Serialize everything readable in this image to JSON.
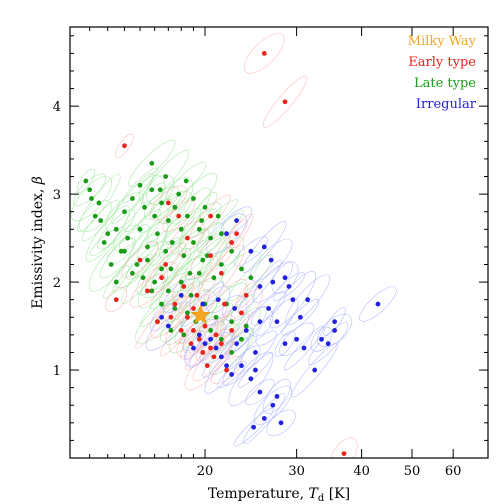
{
  "chart_data": {
    "type": "scatter",
    "title": "",
    "xlabel_prefix": "Temperature, ",
    "xlabel_symbol": "T",
    "xlabel_subscript": "d",
    "xlabel_suffix": " [K]",
    "ylabel_prefix": "Emissivity index, ",
    "ylabel_symbol": "β",
    "x_scale": "log",
    "xlim": [
      11,
      70
    ],
    "ylim": [
      0,
      4.9
    ],
    "xticks": [
      20,
      30,
      40,
      50,
      60
    ],
    "yticks": [
      1,
      2,
      3,
      4
    ],
    "grid": false,
    "legend_position": "top-right",
    "legend": [
      {
        "label": "Milky Way",
        "color": "#f5a623"
      },
      {
        "label": "Early type",
        "color": "#e8241c"
      },
      {
        "label": "Late type",
        "color": "#1a9b1a"
      },
      {
        "label": "Irregular",
        "color": "#2222dd"
      }
    ],
    "series": [
      {
        "name": "Late type",
        "color": "#1a9b1a",
        "points": [
          [
            11.8,
            3.15
          ],
          [
            12.0,
            3.05
          ],
          [
            12.1,
            2.95
          ],
          [
            12.5,
            2.9
          ],
          [
            12.3,
            2.75
          ],
          [
            12.6,
            2.7
          ],
          [
            13.0,
            2.55
          ],
          [
            12.8,
            2.45
          ],
          [
            13.5,
            2.6
          ],
          [
            13.2,
            2.2
          ],
          [
            13.8,
            2.35
          ],
          [
            14.0,
            2.8
          ],
          [
            14.5,
            2.95
          ],
          [
            14.2,
            2.5
          ],
          [
            15.0,
            3.1
          ],
          [
            15.3,
            2.85
          ],
          [
            15.8,
            3.05
          ],
          [
            16.0,
            2.75
          ],
          [
            14.8,
            2.2
          ],
          [
            15.5,
            2.4
          ],
          [
            16.5,
            2.9
          ],
          [
            17.0,
            2.7
          ],
          [
            16.2,
            2.55
          ],
          [
            17.5,
            2.85
          ],
          [
            18.0,
            2.6
          ],
          [
            18.5,
            2.75
          ],
          [
            16.8,
            2.35
          ],
          [
            17.2,
            2.15
          ],
          [
            18.2,
            2.3
          ],
          [
            19.0,
            2.45
          ],
          [
            19.5,
            2.6
          ],
          [
            15.2,
            2.05
          ],
          [
            16.0,
            2.0
          ],
          [
            17.0,
            1.9
          ],
          [
            18.0,
            2.0
          ],
          [
            18.8,
            1.85
          ],
          [
            19.5,
            2.1
          ],
          [
            20.2,
            2.3
          ],
          [
            20.8,
            2.05
          ],
          [
            21.5,
            2.2
          ],
          [
            16.5,
            1.75
          ],
          [
            17.5,
            1.7
          ],
          [
            18.5,
            1.65
          ],
          [
            19.2,
            1.55
          ],
          [
            20.0,
            1.75
          ],
          [
            21.0,
            1.6
          ],
          [
            22.0,
            1.75
          ],
          [
            22.5,
            1.55
          ],
          [
            15.8,
            1.9
          ],
          [
            14.5,
            2.1
          ],
          [
            16.8,
            3.2
          ],
          [
            17.8,
            3.0
          ],
          [
            18.4,
            3.15
          ],
          [
            19.0,
            2.95
          ],
          [
            20.0,
            2.85
          ],
          [
            19.7,
            2.7
          ],
          [
            21.5,
            2.55
          ],
          [
            22.5,
            2.35
          ],
          [
            23.5,
            2.15
          ],
          [
            24.5,
            2.05
          ],
          [
            20.5,
            1.45
          ],
          [
            21.5,
            1.35
          ],
          [
            22.5,
            1.2
          ],
          [
            23.5,
            1.35
          ],
          [
            24.0,
            1.5
          ],
          [
            16.2,
            1.55
          ],
          [
            17.2,
            1.45
          ],
          [
            18.2,
            1.4
          ],
          [
            15.0,
            2.6
          ],
          [
            14.0,
            2.35
          ],
          [
            13.5,
            2.0
          ],
          [
            15.5,
            2.25
          ],
          [
            16.5,
            2.15
          ],
          [
            17.3,
            2.45
          ],
          [
            18.7,
            2.1
          ],
          [
            19.8,
            2.25
          ],
          [
            20.5,
            2.5
          ],
          [
            21.2,
            2.75
          ],
          [
            15.8,
            3.35
          ],
          [
            16.4,
            3.05
          ]
        ]
      },
      {
        "name": "Early type",
        "color": "#e8241c",
        "points": [
          [
            14.0,
            3.55
          ],
          [
            17.8,
            2.75
          ],
          [
            20.5,
            2.3
          ],
          [
            22.5,
            2.45
          ],
          [
            16.5,
            2.05
          ],
          [
            17.5,
            1.75
          ],
          [
            18.5,
            1.6
          ],
          [
            19.0,
            1.45
          ],
          [
            19.5,
            1.35
          ],
          [
            20.0,
            1.5
          ],
          [
            20.5,
            1.25
          ],
          [
            21.0,
            1.4
          ],
          [
            18.0,
            1.45
          ],
          [
            18.8,
            1.3
          ],
          [
            19.8,
            1.2
          ],
          [
            20.8,
            1.15
          ],
          [
            21.5,
            1.3
          ],
          [
            22.5,
            1.45
          ],
          [
            23.5,
            1.65
          ],
          [
            24.0,
            1.85
          ],
          [
            15.5,
            1.9
          ],
          [
            16.8,
            2.2
          ],
          [
            13.5,
            1.8
          ],
          [
            18.5,
            2.5
          ],
          [
            20.5,
            2.75
          ],
          [
            21.5,
            2.1
          ],
          [
            19.0,
            1.7
          ],
          [
            17.2,
            1.6
          ],
          [
            16.2,
            1.55
          ],
          [
            22.0,
            1.0
          ],
          [
            26.0,
            4.6
          ],
          [
            28.5,
            4.05
          ],
          [
            37.0,
            0.05
          ],
          [
            19.3,
            1.85
          ],
          [
            21.8,
            1.75
          ],
          [
            23.0,
            2.55
          ],
          [
            15.0,
            2.25
          ],
          [
            20.2,
            1.05
          ],
          [
            18.2,
            1.95
          ],
          [
            17.0,
            2.9
          ]
        ]
      },
      {
        "name": "Irregular",
        "color": "#2222dd",
        "points": [
          [
            19.0,
            1.25
          ],
          [
            19.5,
            1.4
          ],
          [
            20.0,
            1.3
          ],
          [
            20.5,
            1.35
          ],
          [
            21.0,
            1.25
          ],
          [
            21.5,
            1.15
          ],
          [
            22.0,
            1.05
          ],
          [
            22.5,
            0.95
          ],
          [
            23.5,
            1.05
          ],
          [
            24.5,
            0.9
          ],
          [
            25.5,
            0.75
          ],
          [
            27.0,
            0.6
          ],
          [
            26.0,
            0.45
          ],
          [
            28.0,
            0.4
          ],
          [
            25.0,
            1.0
          ],
          [
            24.0,
            1.45
          ],
          [
            25.5,
            1.55
          ],
          [
            26.5,
            1.7
          ],
          [
            27.5,
            1.55
          ],
          [
            28.5,
            1.3
          ],
          [
            30.0,
            1.35
          ],
          [
            31.0,
            1.25
          ],
          [
            33.5,
            1.35
          ],
          [
            35.5,
            1.45
          ],
          [
            34.5,
            1.3
          ],
          [
            29.5,
            1.8
          ],
          [
            29.0,
            1.95
          ],
          [
            27.0,
            2.0
          ],
          [
            25.5,
            1.95
          ],
          [
            23.0,
            2.7
          ],
          [
            22.0,
            2.55
          ],
          [
            26.0,
            2.4
          ],
          [
            28.5,
            2.05
          ],
          [
            30.5,
            1.6
          ],
          [
            31.5,
            1.8
          ],
          [
            35.5,
            1.55
          ],
          [
            43.0,
            1.75
          ],
          [
            17.0,
            1.5
          ],
          [
            16.5,
            1.6
          ],
          [
            18.0,
            1.85
          ],
          [
            19.8,
            1.75
          ],
          [
            21.2,
            1.8
          ],
          [
            23.0,
            1.3
          ],
          [
            25.0,
            1.2
          ],
          [
            22.8,
            1.7
          ],
          [
            24.5,
            2.35
          ],
          [
            26.8,
            2.25
          ],
          [
            32.5,
            1.0
          ],
          [
            27.5,
            0.7
          ],
          [
            24.8,
            0.35
          ]
        ]
      },
      {
        "name": "Milky Way",
        "color": "#f5a623",
        "points": [
          [
            19.6,
            1.62
          ]
        ]
      }
    ]
  }
}
